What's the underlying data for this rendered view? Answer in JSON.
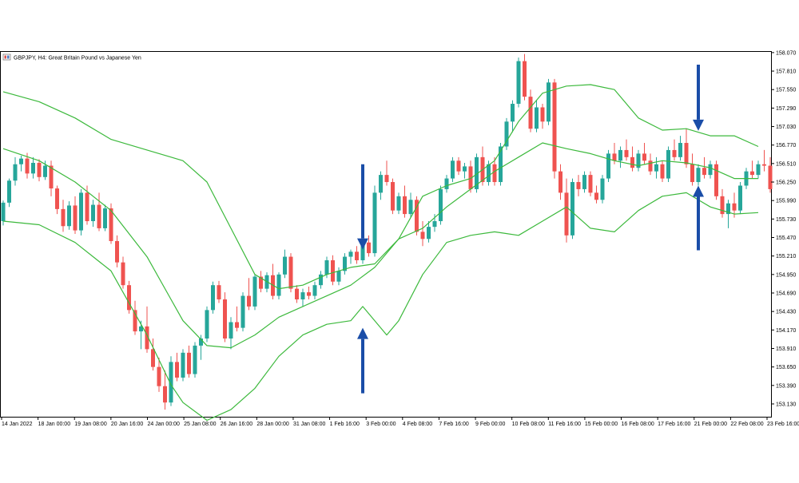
{
  "window": {
    "title": "GBPJPY, H4:  Great Britain Pound vs Japanese Yen",
    "icon": "chart-window-icon"
  },
  "colors": {
    "bull": "#26a69a",
    "bear": "#ef5350",
    "bands": "#3cb93c",
    "arrow": "#1a4da8",
    "frame": "#000000"
  },
  "chart_data": {
    "type": "candlestick",
    "symbol": "GBPJPY",
    "timeframe": "H4",
    "title": "GBPJPY, H4:  Great Britain Pound vs Japanese Yen",
    "ylim": [
      152.95,
      158.08
    ],
    "y_ticks": [
      "158.070",
      "157.810",
      "157.550",
      "157.290",
      "157.030",
      "156.770",
      "156.510",
      "156.250",
      "155.990",
      "155.730",
      "155.470",
      "155.210",
      "154.950",
      "154.690",
      "154.430",
      "154.170",
      "153.910",
      "153.650",
      "153.390",
      "153.130"
    ],
    "x_ticks": [
      "14 Jan 2022",
      "18 Jan 00:00",
      "19 Jan 08:00",
      "20 Jan 16:00",
      "24 Jan 00:00",
      "25 Jan 08:00",
      "26 Jan 16:00",
      "28 Jan 00:00",
      "31 Jan 08:00",
      "1 Feb 16:00",
      "3 Feb 00:00",
      "4 Feb 08:00",
      "7 Feb 16:00",
      "9 Feb 00:00",
      "10 Feb 08:00",
      "11 Feb 16:00",
      "15 Feb 00:00",
      "16 Feb 08:00",
      "17 Feb 16:00",
      "21 Feb 00:00",
      "22 Feb 08:00",
      "23 Feb 16:00"
    ],
    "candles": [
      [
        155.7,
        155.99,
        155.64,
        155.96
      ],
      [
        155.96,
        156.3,
        155.9,
        156.27
      ],
      [
        156.27,
        156.6,
        156.2,
        156.5
      ],
      [
        156.5,
        156.62,
        156.4,
        156.58
      ],
      [
        156.58,
        156.66,
        156.3,
        156.37
      ],
      [
        156.37,
        156.6,
        156.3,
        156.52
      ],
      [
        156.52,
        156.57,
        156.26,
        156.32
      ],
      [
        156.32,
        156.55,
        156.28,
        156.48
      ],
      [
        156.48,
        156.55,
        156.05,
        156.16
      ],
      [
        156.16,
        156.2,
        155.8,
        155.87
      ],
      [
        155.87,
        156.0,
        155.55,
        155.63
      ],
      [
        155.63,
        155.98,
        155.58,
        155.92
      ],
      [
        155.92,
        156.05,
        155.52,
        155.57
      ],
      [
        155.57,
        156.15,
        155.5,
        156.1
      ],
      [
        156.1,
        156.2,
        155.65,
        155.7
      ],
      [
        155.7,
        156.0,
        155.62,
        155.93
      ],
      [
        155.93,
        156.1,
        155.56,
        155.6
      ],
      [
        155.6,
        155.93,
        155.56,
        155.88
      ],
      [
        155.88,
        155.95,
        155.38,
        155.42
      ],
      [
        155.42,
        155.5,
        155.05,
        155.12
      ],
      [
        155.12,
        155.2,
        154.75,
        154.8
      ],
      [
        154.8,
        154.86,
        154.4,
        154.45
      ],
      [
        154.45,
        154.58,
        154.1,
        154.15
      ],
      [
        154.15,
        154.3,
        153.9,
        154.22
      ],
      [
        154.22,
        154.5,
        153.85,
        153.9
      ],
      [
        153.9,
        154.05,
        153.6,
        153.65
      ],
      [
        153.65,
        153.78,
        153.3,
        153.38
      ],
      [
        153.38,
        153.6,
        153.05,
        153.15
      ],
      [
        153.15,
        153.8,
        153.1,
        153.72
      ],
      [
        153.72,
        153.85,
        153.45,
        153.5
      ],
      [
        153.5,
        153.9,
        153.45,
        153.85
      ],
      [
        153.85,
        153.95,
        153.5,
        153.55
      ],
      [
        153.55,
        154.0,
        153.5,
        153.95
      ],
      [
        153.95,
        154.1,
        153.75,
        154.05
      ],
      [
        154.05,
        154.5,
        154.0,
        154.45
      ],
      [
        154.45,
        154.85,
        154.4,
        154.8
      ],
      [
        154.8,
        154.86,
        154.55,
        154.6
      ],
      [
        154.6,
        154.7,
        154.0,
        154.05
      ],
      [
        154.05,
        154.35,
        153.9,
        154.28
      ],
      [
        154.28,
        154.5,
        154.15,
        154.2
      ],
      [
        154.2,
        154.7,
        154.15,
        154.65
      ],
      [
        154.65,
        154.9,
        154.45,
        154.5
      ],
      [
        154.5,
        154.95,
        154.45,
        154.92
      ],
      [
        154.92,
        155.0,
        154.7,
        154.75
      ],
      [
        154.75,
        154.98,
        154.7,
        154.94
      ],
      [
        154.94,
        155.1,
        154.6,
        154.65
      ],
      [
        154.65,
        154.98,
        154.6,
        154.95
      ],
      [
        154.95,
        155.3,
        154.9,
        155.2
      ],
      [
        155.2,
        155.25,
        154.7,
        154.75
      ],
      [
        154.75,
        154.8,
        154.55,
        154.6
      ],
      [
        154.6,
        154.75,
        154.5,
        154.7
      ],
      [
        154.7,
        154.78,
        154.6,
        154.65
      ],
      [
        154.65,
        154.85,
        154.6,
        154.8
      ],
      [
        154.8,
        155.0,
        154.75,
        154.95
      ],
      [
        154.95,
        155.2,
        154.9,
        155.15
      ],
      [
        155.15,
        155.22,
        154.8,
        154.85
      ],
      [
        154.85,
        155.05,
        154.8,
        155.0
      ],
      [
        155.0,
        155.25,
        154.95,
        155.2
      ],
      [
        155.2,
        155.3,
        155.1,
        155.27
      ],
      [
        155.27,
        155.35,
        155.1,
        155.15
      ],
      [
        155.15,
        155.45,
        155.1,
        155.4
      ],
      [
        155.4,
        155.5,
        155.2,
        155.25
      ],
      [
        155.25,
        156.2,
        155.2,
        156.1
      ],
      [
        156.1,
        156.4,
        156.0,
        156.35
      ],
      [
        156.35,
        156.55,
        156.2,
        156.25
      ],
      [
        156.25,
        156.3,
        155.8,
        155.85
      ],
      [
        155.85,
        156.1,
        155.8,
        156.05
      ],
      [
        156.05,
        156.2,
        155.75,
        155.8
      ],
      [
        155.8,
        156.1,
        155.75,
        156.0
      ],
      [
        156.0,
        156.05,
        155.5,
        155.55
      ],
      [
        155.55,
        155.7,
        155.35,
        155.45
      ],
      [
        155.45,
        155.7,
        155.4,
        155.62
      ],
      [
        155.62,
        155.8,
        155.55,
        155.7
      ],
      [
        155.7,
        156.2,
        155.65,
        156.15
      ],
      [
        156.15,
        156.35,
        156.1,
        156.3
      ],
      [
        156.3,
        156.6,
        156.25,
        156.55
      ],
      [
        156.55,
        156.6,
        156.35,
        156.4
      ],
      [
        156.4,
        156.52,
        156.3,
        156.47
      ],
      [
        156.47,
        156.55,
        156.1,
        156.15
      ],
      [
        156.15,
        156.65,
        156.1,
        156.6
      ],
      [
        156.6,
        156.75,
        156.2,
        156.25
      ],
      [
        156.25,
        156.55,
        156.2,
        156.5
      ],
      [
        156.5,
        156.6,
        156.2,
        156.25
      ],
      [
        156.25,
        156.8,
        156.2,
        156.75
      ],
      [
        156.75,
        157.15,
        156.7,
        157.1
      ],
      [
        157.1,
        157.4,
        156.95,
        157.35
      ],
      [
        157.35,
        158.0,
        157.3,
        157.95
      ],
      [
        157.95,
        158.05,
        157.4,
        157.45
      ],
      [
        157.45,
        157.55,
        156.95,
        157.0
      ],
      [
        157.0,
        157.4,
        156.95,
        157.3
      ],
      [
        157.3,
        157.35,
        157.0,
        157.1
      ],
      [
        157.1,
        157.7,
        157.05,
        157.65
      ],
      [
        157.65,
        157.7,
        156.3,
        156.4
      ],
      [
        156.4,
        156.5,
        156.0,
        156.1
      ],
      [
        156.1,
        156.3,
        155.4,
        155.5
      ],
      [
        155.5,
        156.3,
        155.45,
        156.25
      ],
      [
        156.25,
        156.35,
        156.05,
        156.15
      ],
      [
        156.15,
        156.4,
        156.1,
        156.35
      ],
      [
        156.35,
        156.4,
        156.05,
        156.1
      ],
      [
        156.1,
        156.2,
        155.95,
        156.0
      ],
      [
        156.0,
        156.35,
        155.95,
        156.3
      ],
      [
        156.3,
        156.7,
        156.25,
        156.65
      ],
      [
        156.65,
        156.8,
        156.5,
        156.55
      ],
      [
        156.55,
        156.75,
        156.45,
        156.7
      ],
      [
        156.7,
        156.85,
        156.55,
        156.6
      ],
      [
        156.6,
        156.75,
        156.4,
        156.45
      ],
      [
        156.45,
        156.7,
        156.4,
        156.65
      ],
      [
        156.65,
        156.8,
        156.5,
        156.55
      ],
      [
        156.55,
        156.65,
        156.35,
        156.4
      ],
      [
        156.4,
        156.6,
        156.3,
        156.5
      ],
      [
        156.5,
        156.55,
        156.25,
        156.3
      ],
      [
        156.3,
        156.75,
        156.25,
        156.7
      ],
      [
        156.7,
        156.85,
        156.55,
        156.6
      ],
      [
        156.6,
        156.9,
        156.55,
        156.8
      ],
      [
        156.8,
        157.0,
        156.45,
        156.5
      ],
      [
        156.5,
        156.65,
        156.2,
        156.25
      ],
      [
        156.25,
        156.5,
        156.2,
        156.45
      ],
      [
        156.45,
        156.6,
        156.3,
        156.35
      ],
      [
        156.35,
        156.55,
        156.3,
        156.5
      ],
      [
        156.5,
        156.55,
        156.0,
        156.05
      ],
      [
        156.05,
        156.15,
        155.75,
        155.8
      ],
      [
        155.8,
        156.0,
        155.6,
        155.95
      ],
      [
        155.95,
        156.1,
        155.75,
        155.85
      ],
      [
        155.85,
        156.25,
        155.8,
        156.2
      ],
      [
        156.2,
        156.45,
        156.15,
        156.4
      ],
      [
        156.4,
        156.55,
        156.3,
        156.35
      ],
      [
        156.35,
        156.55,
        156.3,
        156.5
      ],
      [
        156.5,
        156.7,
        156.4,
        156.48
      ],
      [
        156.48,
        156.6,
        156.1,
        156.15
      ]
    ],
    "bollinger": {
      "upper": [
        [
          0,
          157.52
        ],
        [
          6,
          157.38
        ],
        [
          12,
          157.15
        ],
        [
          18,
          156.85
        ],
        [
          24,
          156.7
        ],
        [
          28,
          156.6
        ],
        [
          30,
          156.55
        ],
        [
          34,
          156.25
        ],
        [
          38,
          155.6
        ],
        [
          42,
          154.95
        ],
        [
          46,
          154.75
        ],
        [
          50,
          154.8
        ],
        [
          54,
          154.95
        ],
        [
          58,
          155.05
        ],
        [
          62,
          155.1
        ],
        [
          66,
          155.45
        ],
        [
          70,
          156.05
        ],
        [
          74,
          156.2
        ],
        [
          78,
          156.3
        ],
        [
          82,
          156.55
        ],
        [
          86,
          157.1
        ],
        [
          90,
          157.5
        ],
        [
          94,
          157.6
        ],
        [
          98,
          157.62
        ],
        [
          102,
          157.55
        ],
        [
          106,
          157.15
        ],
        [
          110,
          156.98
        ],
        [
          114,
          157.0
        ],
        [
          118,
          156.9
        ],
        [
          122,
          156.9
        ],
        [
          126,
          156.75
        ]
      ],
      "middle": [
        [
          0,
          156.72
        ],
        [
          6,
          156.55
        ],
        [
          12,
          156.25
        ],
        [
          18,
          155.85
        ],
        [
          24,
          155.2
        ],
        [
          28,
          154.6
        ],
        [
          30,
          154.3
        ],
        [
          34,
          153.95
        ],
        [
          38,
          153.92
        ],
        [
          42,
          154.1
        ],
        [
          46,
          154.35
        ],
        [
          50,
          154.5
        ],
        [
          54,
          154.65
        ],
        [
          58,
          154.8
        ],
        [
          62,
          155.05
        ],
        [
          66,
          155.45
        ],
        [
          70,
          155.6
        ],
        [
          74,
          155.9
        ],
        [
          78,
          156.15
        ],
        [
          82,
          156.4
        ],
        [
          86,
          156.6
        ],
        [
          90,
          156.8
        ],
        [
          94,
          156.72
        ],
        [
          98,
          156.65
        ],
        [
          102,
          156.55
        ],
        [
          106,
          156.48
        ],
        [
          110,
          156.55
        ],
        [
          114,
          156.52
        ],
        [
          118,
          156.45
        ],
        [
          122,
          156.3
        ],
        [
          126,
          156.3
        ]
      ],
      "lower": [
        [
          0,
          155.7
        ],
        [
          6,
          155.65
        ],
        [
          12,
          155.4
        ],
        [
          18,
          155.0
        ],
        [
          24,
          154.1
        ],
        [
          28,
          153.4
        ],
        [
          30,
          153.15
        ],
        [
          34,
          152.9
        ],
        [
          38,
          153.05
        ],
        [
          42,
          153.35
        ],
        [
          46,
          153.8
        ],
        [
          50,
          154.1
        ],
        [
          54,
          154.25
        ],
        [
          58,
          154.3
        ],
        [
          60,
          154.5
        ],
        [
          62,
          154.3
        ],
        [
          64,
          154.1
        ],
        [
          66,
          154.3
        ],
        [
          70,
          154.95
        ],
        [
          74,
          155.4
        ],
        [
          78,
          155.5
        ],
        [
          82,
          155.55
        ],
        [
          86,
          155.5
        ],
        [
          90,
          155.7
        ],
        [
          94,
          155.9
        ],
        [
          98,
          155.6
        ],
        [
          102,
          155.55
        ],
        [
          106,
          155.85
        ],
        [
          110,
          156.05
        ],
        [
          114,
          156.1
        ],
        [
          118,
          155.9
        ],
        [
          122,
          155.8
        ],
        [
          126,
          155.82
        ]
      ]
    },
    "annotations": [
      {
        "type": "arrow",
        "direction": "down",
        "index": 60,
        "from": 156.5,
        "to": 155.3
      },
      {
        "type": "arrow",
        "direction": "up",
        "index": 60,
        "from": 153.28,
        "to": 154.2
      },
      {
        "type": "arrow",
        "direction": "down",
        "index": 116,
        "from": 157.9,
        "to": 156.97
      },
      {
        "type": "arrow",
        "direction": "up",
        "index": 116,
        "from": 155.29,
        "to": 156.2
      }
    ]
  }
}
